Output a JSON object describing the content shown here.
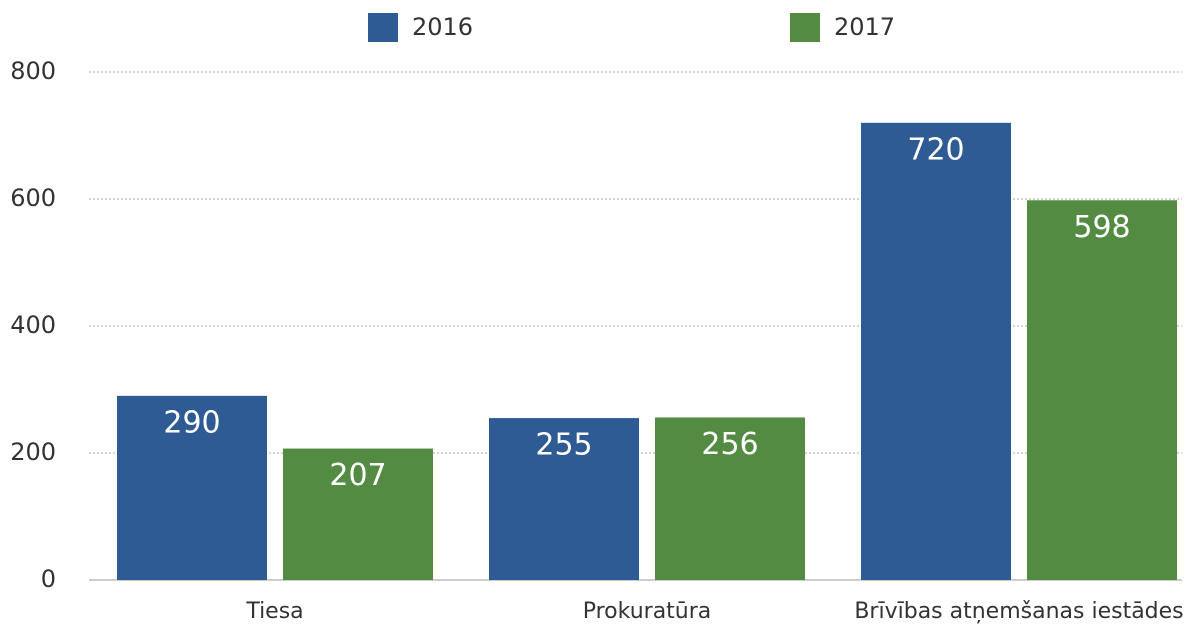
{
  "chart_data": {
    "type": "bar",
    "categories": [
      "Tiesa",
      "Prokuratūra",
      "Brīvības atņemšanas iestādes"
    ],
    "series": [
      {
        "name": "2016",
        "color": "#2f5b94",
        "values": [
          290,
          255,
          720
        ]
      },
      {
        "name": "2017",
        "color": "#548b43",
        "values": [
          207,
          256,
          598
        ]
      }
    ],
    "ylim": [
      0,
      800
    ],
    "yticks": [
      0,
      200,
      400,
      600,
      800
    ],
    "grid": true,
    "legend": "top"
  }
}
